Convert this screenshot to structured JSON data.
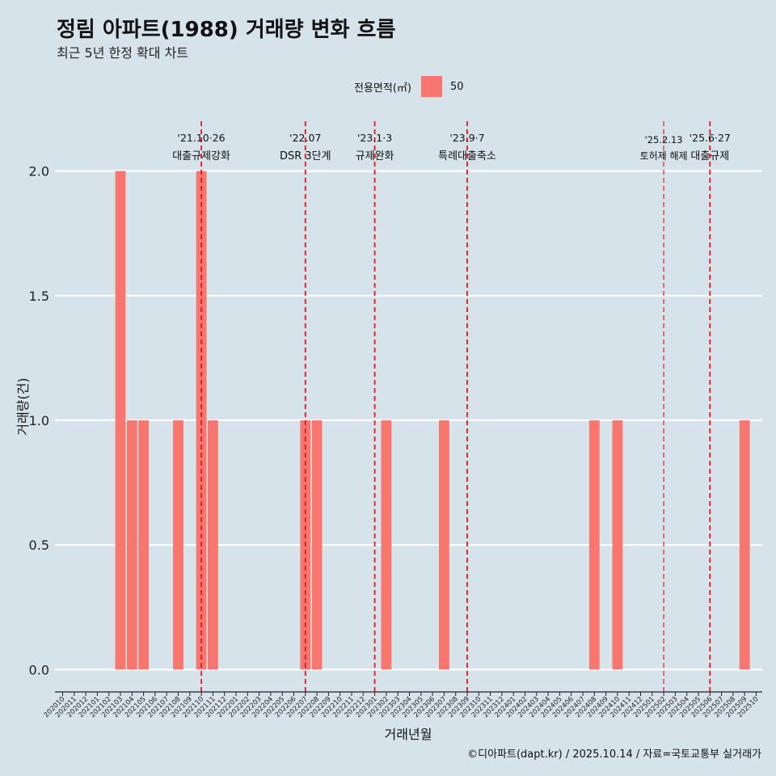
{
  "title": "정림 아파트(1988) 거래량 변화 흐름",
  "subtitle": "최근 5년 한정 확대 차트",
  "caption": "©디아파트(dapt.kr) / 2025.10.14 / 자료=국토교통부 실거래가",
  "legend": {
    "title": "전용면적(㎡)",
    "item": "50"
  },
  "colors": {
    "bar": "#f8766d",
    "background": "#d6e3ea",
    "grid": "#ffffff",
    "event": "#e8141e"
  },
  "chart_data": {
    "type": "bar",
    "xlabel": "거래년월",
    "ylabel": "거래량(건)",
    "ylim": [
      -0.09,
      2.2
    ],
    "yticks": [
      0.0,
      0.5,
      1.0,
      1.5,
      2.0
    ],
    "ytick_labels": [
      "0.0",
      "0.5",
      "1.0",
      "1.5",
      "2.0"
    ],
    "categories": [
      "202010",
      "202011",
      "202012",
      "202101",
      "202102",
      "202103",
      "202104",
      "202105",
      "202106",
      "202107",
      "202108",
      "202109",
      "202110",
      "202111",
      "202112",
      "202201",
      "202202",
      "202203",
      "202204",
      "202205",
      "202206",
      "202207",
      "202208",
      "202209",
      "202210",
      "202211",
      "202212",
      "202301",
      "202302",
      "202303",
      "202304",
      "202305",
      "202306",
      "202307",
      "202308",
      "202309",
      "202310",
      "202311",
      "202312",
      "202401",
      "202402",
      "202403",
      "202404",
      "202405",
      "202406",
      "202407",
      "202408",
      "202409",
      "202410",
      "202411",
      "202412",
      "202501",
      "202502",
      "202503",
      "202504",
      "202505",
      "202506",
      "202507",
      "202508",
      "202509",
      "202510"
    ],
    "series": [
      {
        "name": "50",
        "values": [
          0,
          0,
          0,
          0,
          0,
          2,
          1,
          1,
          0,
          0,
          1,
          0,
          2,
          1,
          0,
          0,
          0,
          0,
          0,
          0,
          0,
          1,
          1,
          0,
          0,
          0,
          0,
          0,
          1,
          0,
          0,
          0,
          0,
          1,
          0,
          0,
          0,
          0,
          0,
          0,
          0,
          0,
          0,
          0,
          0,
          0,
          1,
          0,
          1,
          0,
          0,
          0,
          0,
          0,
          0,
          0,
          0,
          0,
          0,
          1,
          0
        ]
      }
    ],
    "events": [
      {
        "date": "'21.10·26",
        "label": "대출규제강화",
        "x": 12.0
      },
      {
        "date": "'22.07",
        "label": "DSR 3단계",
        "x": 21.0
      },
      {
        "date": "'23.1·3",
        "label": "규제완화",
        "x": 27.0
      },
      {
        "date": "'23.9·7",
        "label": "특례대출축소",
        "x": 35.0
      },
      {
        "date": "'25.2.13",
        "label": "토허제 해제",
        "x": 52.0
      },
      {
        "date": "'25.6·27",
        "label": "대출규제",
        "x": 56.0
      }
    ]
  }
}
